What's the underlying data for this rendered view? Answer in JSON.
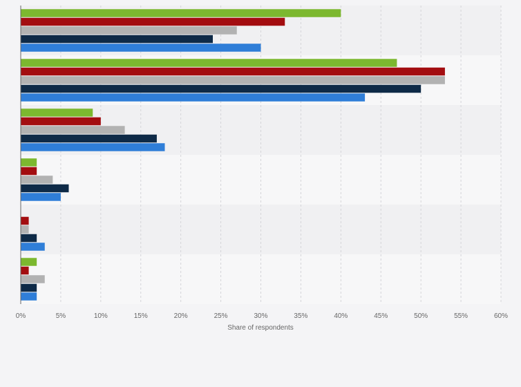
{
  "chart_data": {
    "type": "bar",
    "orientation": "horizontal",
    "categories": [
      "",
      "",
      "",
      "",
      "",
      ""
    ],
    "series": [
      {
        "color": "#7cb82f",
        "values": [
          40,
          47,
          9,
          2,
          0,
          2
        ]
      },
      {
        "color": "#a30d10",
        "values": [
          33,
          53,
          10,
          2,
          1,
          1
        ]
      },
      {
        "color": "#b2b2b2",
        "values": [
          27,
          53,
          13,
          4,
          1,
          3
        ]
      },
      {
        "color": "#0e2a47",
        "values": [
          24,
          50,
          17,
          6,
          2,
          2
        ]
      },
      {
        "color": "#2f7ed8",
        "values": [
          30,
          43,
          18,
          5,
          3,
          2
        ]
      }
    ],
    "xlabel": "Share of respondents",
    "ylabel": "",
    "xlim": [
      0,
      60
    ],
    "ticks": [
      "0%",
      "5%",
      "10%",
      "15%",
      "20%",
      "25%",
      "30%",
      "35%",
      "40%",
      "45%",
      "50%",
      "55%",
      "60%"
    ],
    "grid": true,
    "legend": "none"
  }
}
